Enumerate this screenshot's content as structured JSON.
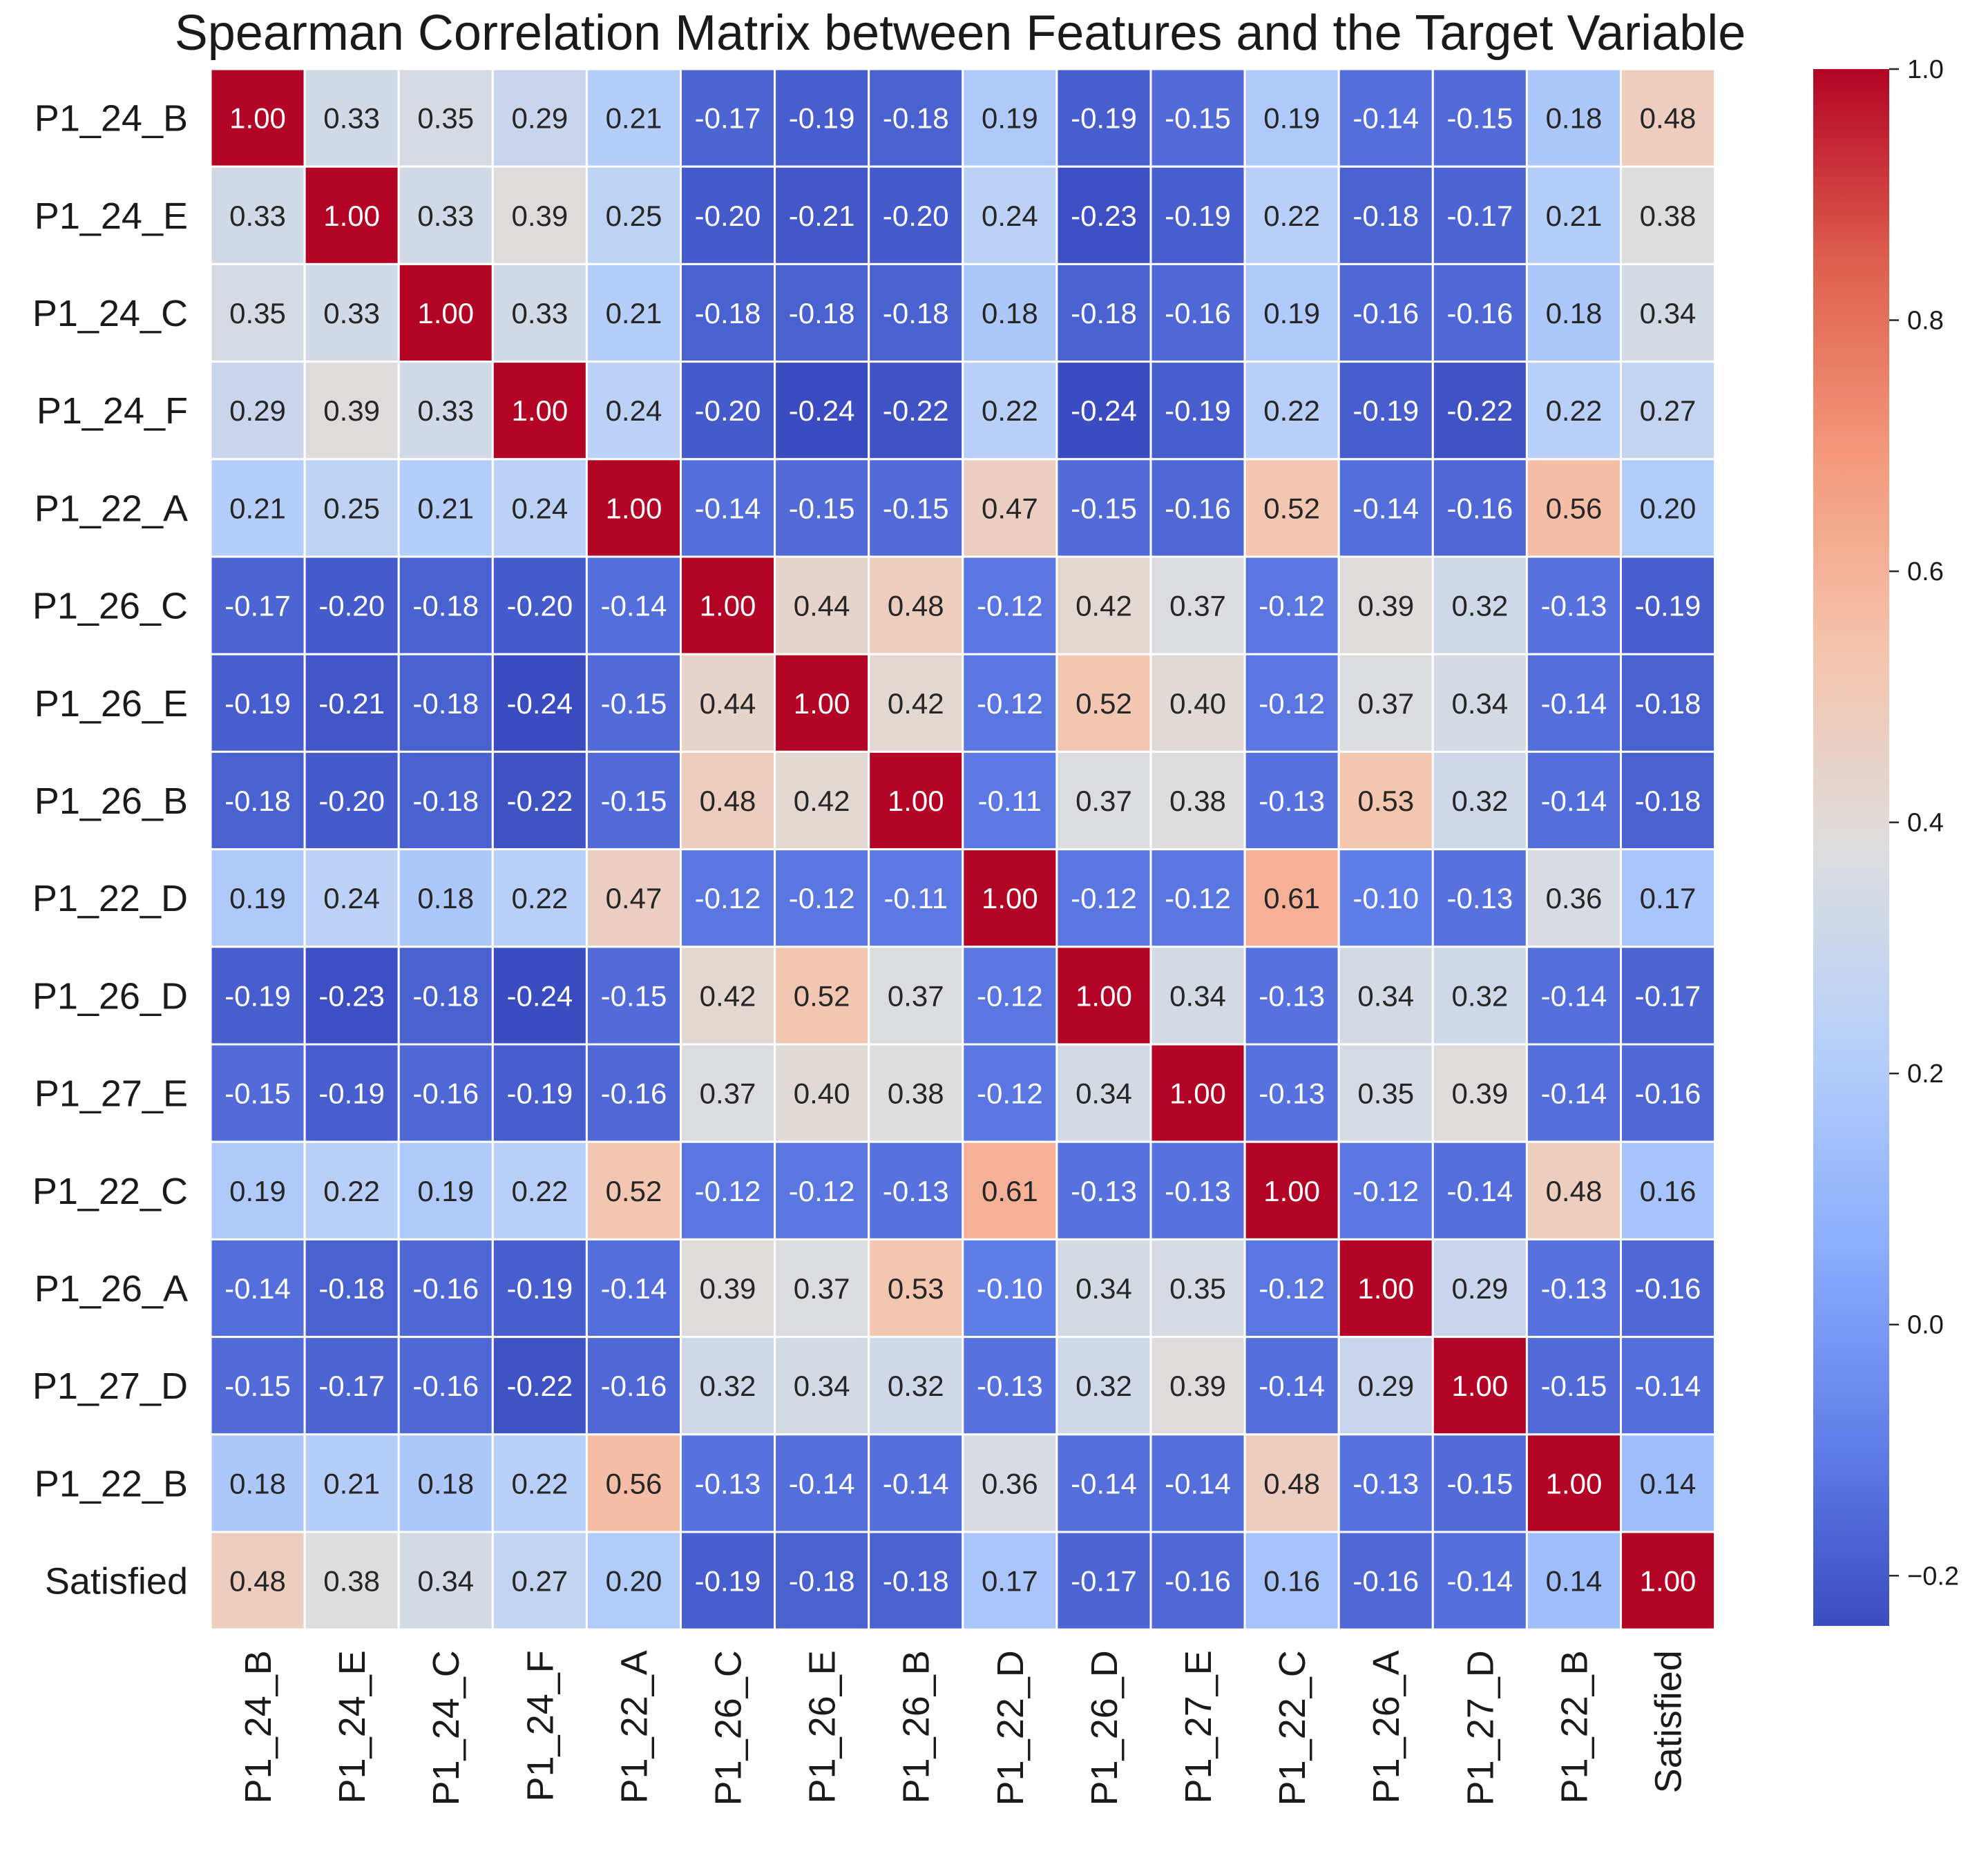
{
  "chart_data": {
    "type": "heatmap",
    "title": "Spearman Correlation Matrix between Features and the Target Variable",
    "labels": [
      "P1_24_B",
      "P1_24_E",
      "P1_24_C",
      "P1_24_F",
      "P1_22_A",
      "P1_26_C",
      "P1_26_E",
      "P1_26_B",
      "P1_22_D",
      "P1_26_D",
      "P1_27_E",
      "P1_22_C",
      "P1_26_A",
      "P1_27_D",
      "P1_22_B",
      "Satisfied"
    ],
    "matrix": [
      [
        1.0,
        0.33,
        0.35,
        0.29,
        0.21,
        -0.17,
        -0.19,
        -0.18,
        0.19,
        -0.19,
        -0.15,
        0.19,
        -0.14,
        -0.15,
        0.18,
        0.48
      ],
      [
        0.33,
        1.0,
        0.33,
        0.39,
        0.25,
        -0.2,
        -0.21,
        -0.2,
        0.24,
        -0.23,
        -0.19,
        0.22,
        -0.18,
        -0.17,
        0.21,
        0.38
      ],
      [
        0.35,
        0.33,
        1.0,
        0.33,
        0.21,
        -0.18,
        -0.18,
        -0.18,
        0.18,
        -0.18,
        -0.16,
        0.19,
        -0.16,
        -0.16,
        0.18,
        0.34
      ],
      [
        0.29,
        0.39,
        0.33,
        1.0,
        0.24,
        -0.2,
        -0.24,
        -0.22,
        0.22,
        -0.24,
        -0.19,
        0.22,
        -0.19,
        -0.22,
        0.22,
        0.27
      ],
      [
        0.21,
        0.25,
        0.21,
        0.24,
        1.0,
        -0.14,
        -0.15,
        -0.15,
        0.47,
        -0.15,
        -0.16,
        0.52,
        -0.14,
        -0.16,
        0.56,
        0.2
      ],
      [
        -0.17,
        -0.2,
        -0.18,
        -0.2,
        -0.14,
        1.0,
        0.44,
        0.48,
        -0.12,
        0.42,
        0.37,
        -0.12,
        0.39,
        0.32,
        -0.13,
        -0.19
      ],
      [
        -0.19,
        -0.21,
        -0.18,
        -0.24,
        -0.15,
        0.44,
        1.0,
        0.42,
        -0.12,
        0.52,
        0.4,
        -0.12,
        0.37,
        0.34,
        -0.14,
        -0.18
      ],
      [
        -0.18,
        -0.2,
        -0.18,
        -0.22,
        -0.15,
        0.48,
        0.42,
        1.0,
        -0.11,
        0.37,
        0.38,
        -0.13,
        0.53,
        0.32,
        -0.14,
        -0.18
      ],
      [
        0.19,
        0.24,
        0.18,
        0.22,
        0.47,
        -0.12,
        -0.12,
        -0.11,
        1.0,
        -0.12,
        -0.12,
        0.61,
        -0.1,
        -0.13,
        0.36,
        0.17
      ],
      [
        -0.19,
        -0.23,
        -0.18,
        -0.24,
        -0.15,
        0.42,
        0.52,
        0.37,
        -0.12,
        1.0,
        0.34,
        -0.13,
        0.34,
        0.32,
        -0.14,
        -0.17
      ],
      [
        -0.15,
        -0.19,
        -0.16,
        -0.19,
        -0.16,
        0.37,
        0.4,
        0.38,
        -0.12,
        0.34,
        1.0,
        -0.13,
        0.35,
        0.39,
        -0.14,
        -0.16
      ],
      [
        0.19,
        0.22,
        0.19,
        0.22,
        0.52,
        -0.12,
        -0.12,
        -0.13,
        0.61,
        -0.13,
        -0.13,
        1.0,
        -0.12,
        -0.14,
        0.48,
        0.16
      ],
      [
        -0.14,
        -0.18,
        -0.16,
        -0.19,
        -0.14,
        0.39,
        0.37,
        0.53,
        -0.1,
        0.34,
        0.35,
        -0.12,
        1.0,
        0.29,
        -0.13,
        -0.16
      ],
      [
        -0.15,
        -0.17,
        -0.16,
        -0.22,
        -0.16,
        0.32,
        0.34,
        0.32,
        -0.13,
        0.32,
        0.39,
        -0.14,
        0.29,
        1.0,
        -0.15,
        -0.14
      ],
      [
        0.18,
        0.21,
        0.18,
        0.22,
        0.56,
        -0.13,
        -0.14,
        -0.14,
        0.36,
        -0.14,
        -0.14,
        0.48,
        -0.13,
        -0.15,
        1.0,
        0.14
      ],
      [
        0.48,
        0.38,
        0.34,
        0.27,
        0.2,
        -0.19,
        -0.18,
        -0.18,
        0.17,
        -0.17,
        -0.16,
        0.16,
        -0.16,
        -0.14,
        0.14,
        1.0
      ]
    ],
    "value_format": "2 decimals",
    "colormap": "coolwarm",
    "color_range": [
      -0.24,
      1.0
    ],
    "colorbar_ticks": [
      1.0,
      0.8,
      0.6,
      0.4,
      0.2,
      0.0,
      -0.2
    ],
    "colorbar_tick_labels": [
      "1.0",
      "0.8",
      "0.6",
      "0.4",
      "0.2",
      "0.0",
      "−0.2"
    ],
    "colorbar_placement": "right",
    "grid_lines": "white"
  }
}
